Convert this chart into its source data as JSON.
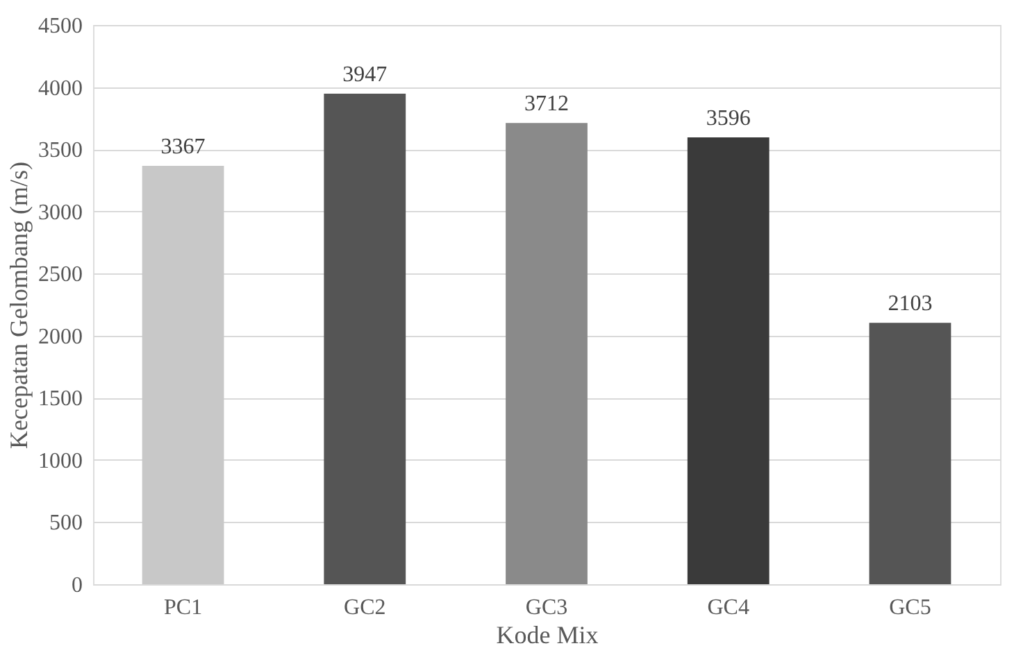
{
  "chart_data": {
    "type": "bar",
    "xlabel": "Kode Mix",
    "ylabel": "Kecepatan Gelombang (m/s)",
    "categories": [
      "PC1",
      "GC2",
      "GC3",
      "GC4",
      "GC5"
    ],
    "values": [
      3367,
      3947,
      3712,
      3596,
      2103
    ],
    "colors": [
      "#c8c8c8",
      "#555555",
      "#8a8a8a",
      "#3a3a3a",
      "#555555"
    ],
    "ylim": [
      0,
      4500
    ],
    "yticks": [
      0,
      500,
      1000,
      1500,
      2000,
      2500,
      3000,
      3500,
      4000,
      4500
    ],
    "grid": "y",
    "data_labels": true
  }
}
